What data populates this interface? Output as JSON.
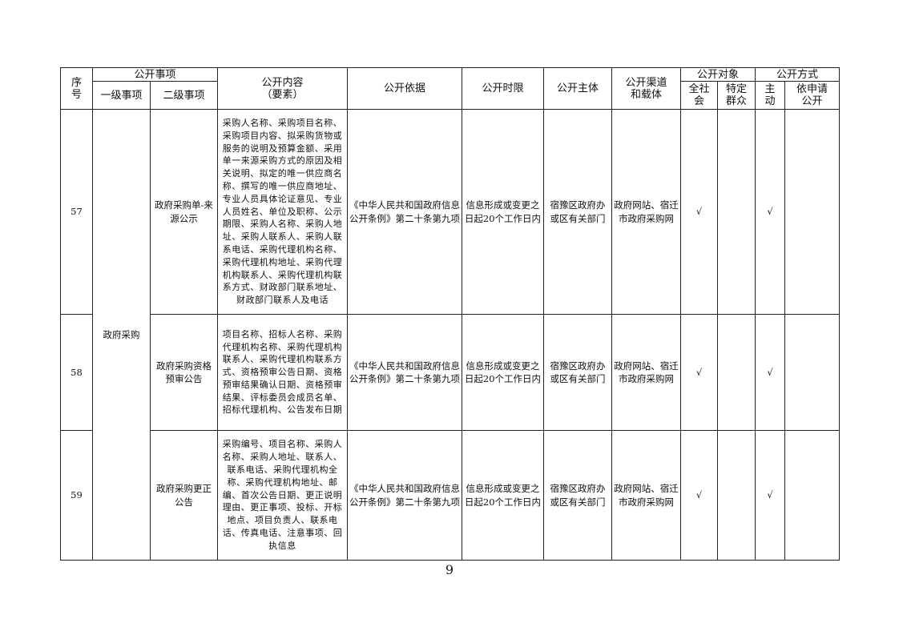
{
  "header": {
    "seq": "序\n号",
    "matter": "公开事项",
    "level1": "一级事项",
    "level2": "二级事项",
    "content": "公开内容\n（要素）",
    "basis": "公开依据",
    "time_limit": "公开时限",
    "subject": "公开主体",
    "channel": "公开渠道\n和载体",
    "target": "公开对象",
    "target_all": "全社\n会",
    "target_specific": "特定\n群众",
    "method": "公开方式",
    "method_active": "主\n动",
    "method_request": "依申请\n公开"
  },
  "level1_merged": "政府采购",
  "rows": [
    {
      "seq": "57",
      "level2": "政府采购单-来源公示",
      "content": "采购人名称、采购项目名称、采购项目内容、拟采购货物或服务的说明及预算金额、采用单一来源采购方式的原因及相关说明、拟定的唯一供应商名称、撰写的唯一供应商地址、专业人员具体论证意见、专业人员姓名、单位及职称、公示期限、采购人名称、采购人地址、采购人联系人、采购人联系电话、采购代理机构名称、采购代理机构地址、采购代理机构联系人、采购代理机构联系方式、财政部门联系地址、财政部门联系人及电话",
      "basis": "《中华人民共和国政府信息公开条例》第二十条第九项",
      "time_limit": "信息形成或变更之日起20个工作日内",
      "subject": "宿豫区政府办或区有关部门",
      "channel": "政府网站、宿迁市政府采购网",
      "target_all": "√",
      "target_specific": "",
      "method_active": "√",
      "method_request": ""
    },
    {
      "seq": "58",
      "level2": "政府采购资格预审公告",
      "content": "项目名称、招标人名称、采购代理机构名称、采购代理机构联系人、采购代理机构联系方式、资格预审公告日期、资格预审结果确认日期、资格预审结果、评标委员会成员名单、招标代理机构、公告发布日期",
      "basis": "《中华人民共和国政府信息公开条例》第二十条第九项",
      "time_limit": "信息形成或变更之日起20个工作日内",
      "subject": "宿豫区政府办或区有关部门",
      "channel": "政府网站、宿迁市政府采购网",
      "target_all": "√",
      "target_specific": "",
      "method_active": "√",
      "method_request": ""
    },
    {
      "seq": "59",
      "level2": "政府采购更正公告",
      "content": "采购编号、项目名称、采购人名称、采购人地址、联系人、联系电话、采购代理机构全称、采购代理机构地址、邮编、首次公告日期、更正说明理由、更正事项、投标、开标地点、项目负责人、联系电话、传真电话、注意事项、回执信息",
      "basis": "《中华人民共和国政府信息公开条例》第二十条第九项",
      "time_limit": "信息形成或变更之日起20个工作日内",
      "subject": "宿豫区政府办或区有关部门",
      "channel": "政府网站、宿迁市政府采购网",
      "target_all": "√",
      "target_specific": "",
      "method_active": "√",
      "method_request": ""
    }
  ],
  "page_number": "9"
}
